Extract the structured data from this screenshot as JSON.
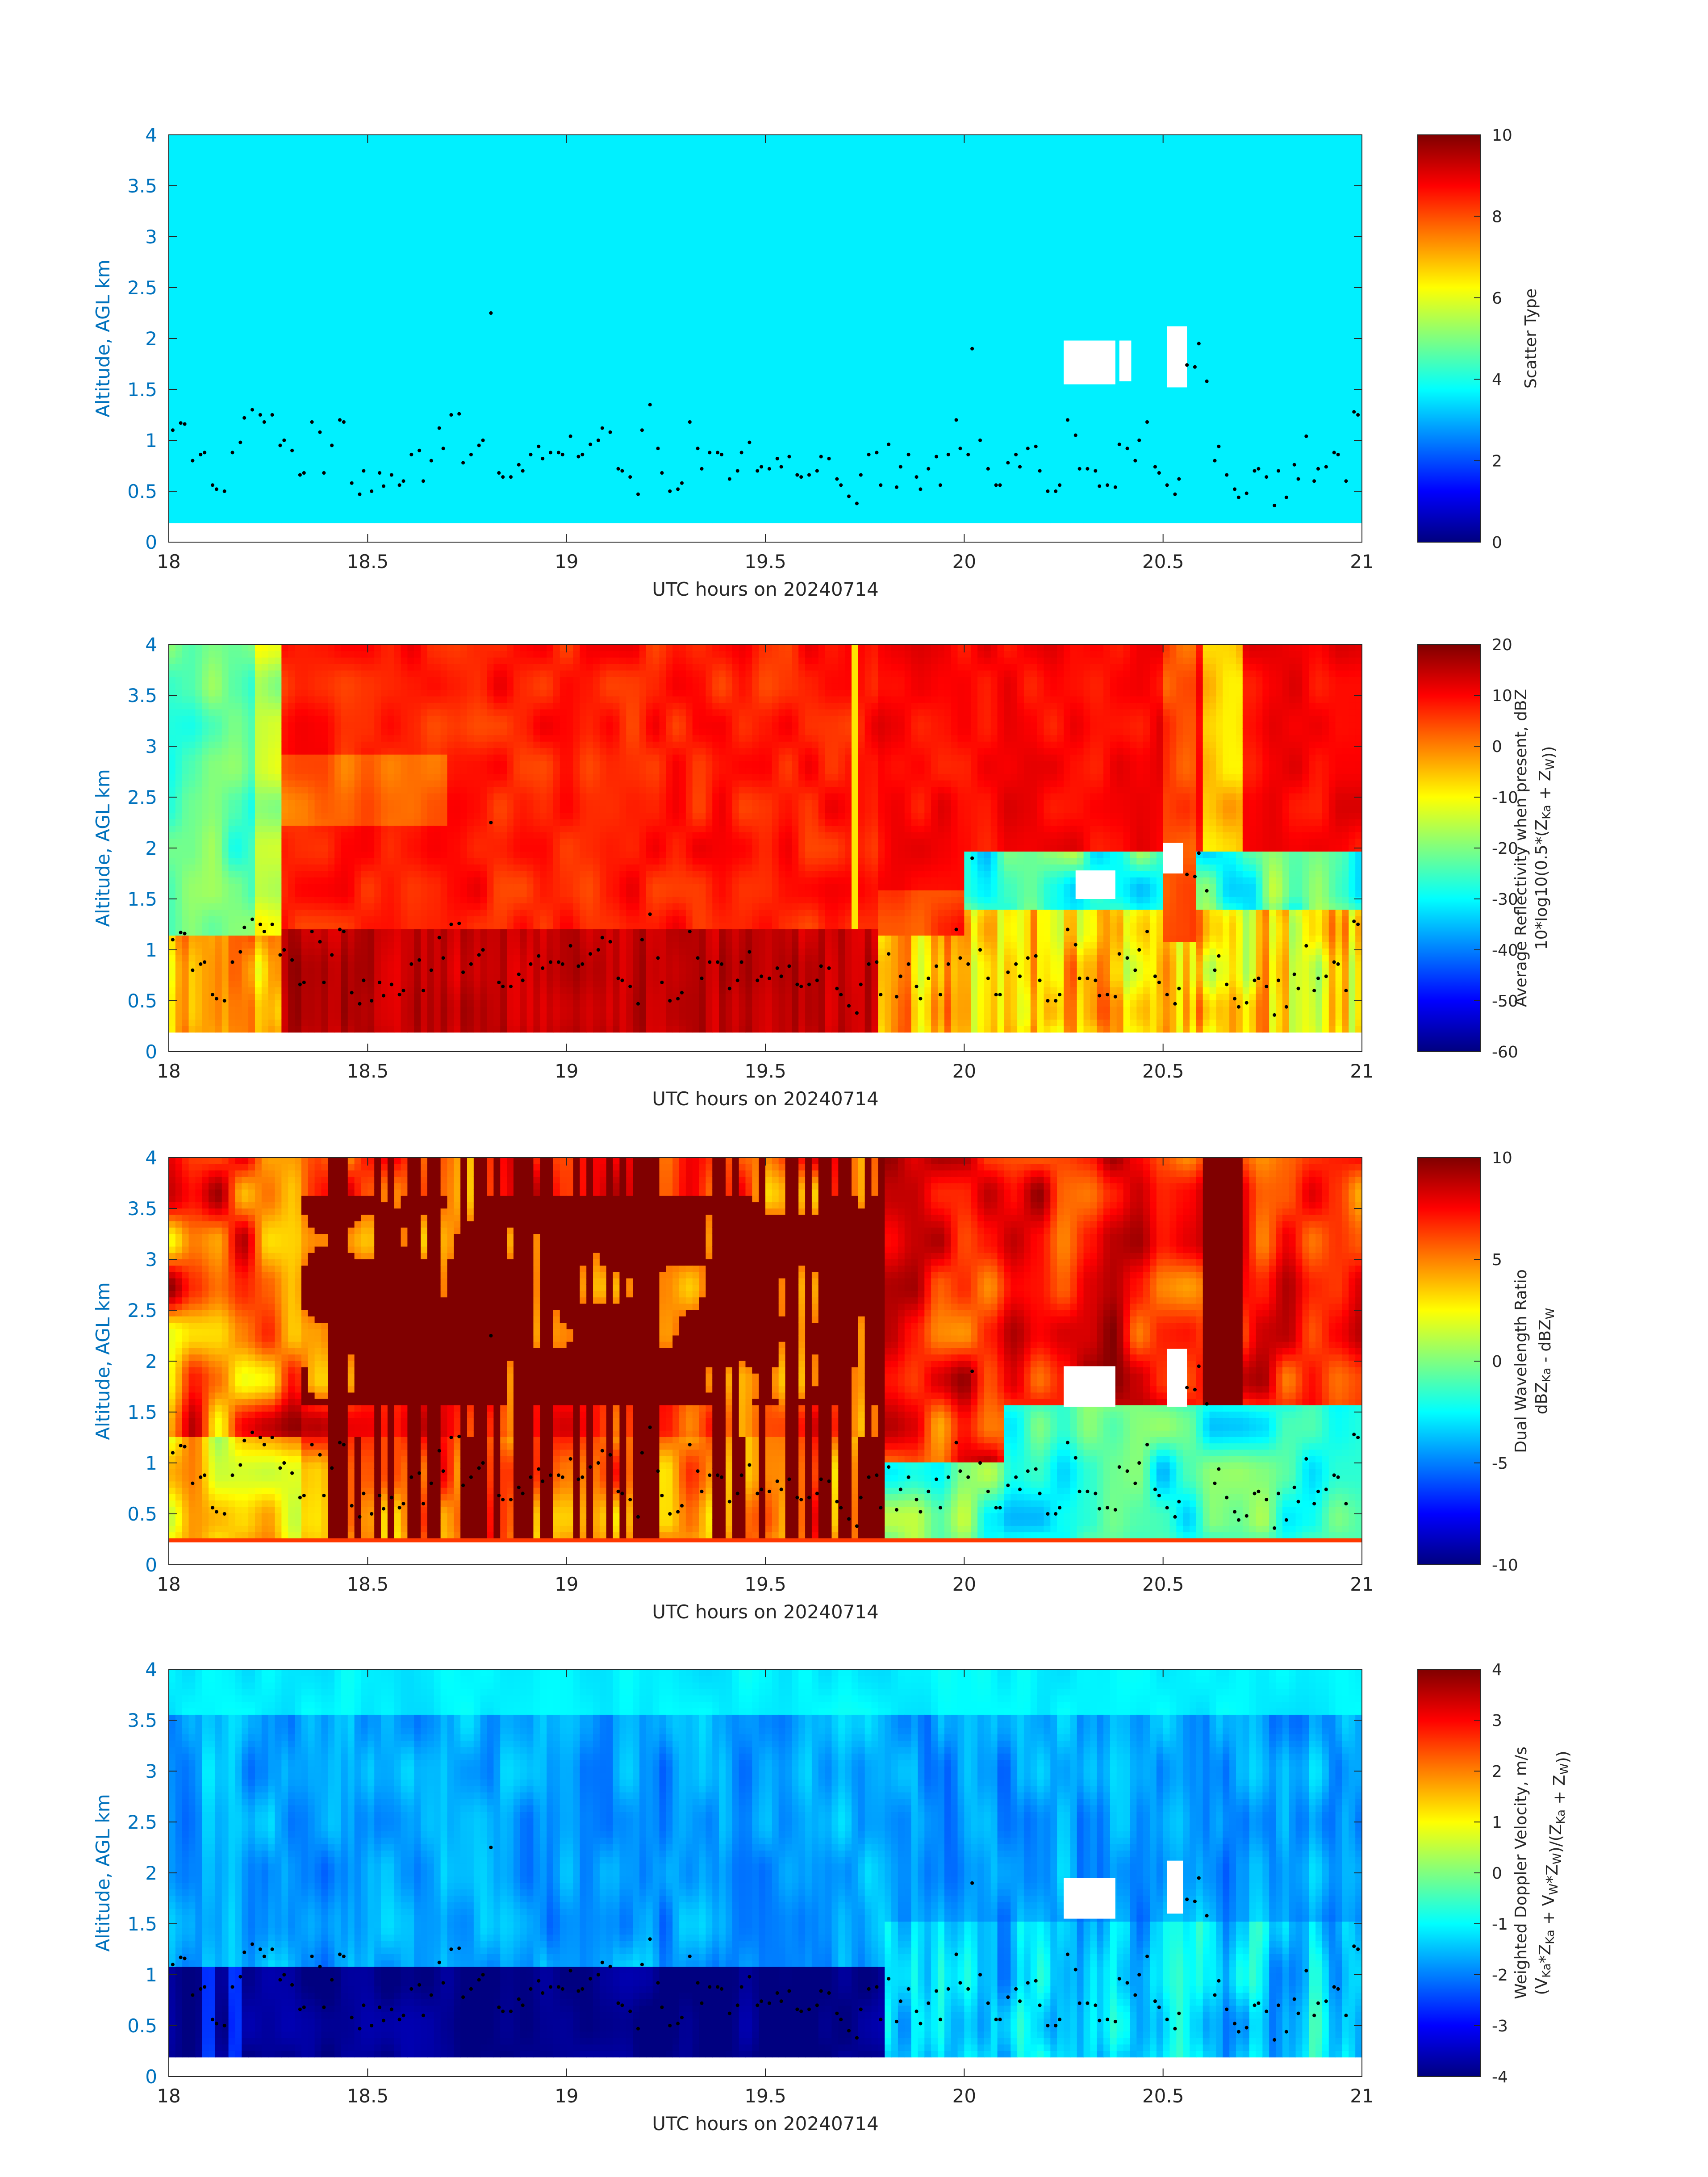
{
  "figure": {
    "background": "#ffffff",
    "ytick_color": "#0072BD",
    "text_color": "#262626",
    "colormap": "jet"
  },
  "chart_data": [
    {
      "type": "heatmap",
      "xlabel": "UTC hours on 20240714",
      "ylabel": "Altitude, AGL km",
      "xlim": [
        18,
        21
      ],
      "ylim": [
        0,
        4
      ],
      "xticks": [
        "18",
        "18.5",
        "19",
        "19.5",
        "20",
        "20.5",
        "21"
      ],
      "yticks": [
        "0",
        "0.5",
        "1",
        "1.5",
        "2",
        "2.5",
        "3",
        "3.5",
        "4"
      ],
      "colorbar": {
        "label_lines": [
          "Scatter Type"
        ],
        "clim": [
          0,
          10
        ],
        "ticks": [
          "0",
          "2",
          "4",
          "6",
          "8",
          "10"
        ]
      },
      "field": "scatter",
      "data_bottom_km": 0.19,
      "white_regions": [
        {
          "x": [
            20.25,
            20.38
          ],
          "y": [
            1.55,
            1.98
          ]
        },
        {
          "x": [
            20.39,
            20.42
          ],
          "y": [
            1.58,
            1.98
          ]
        },
        {
          "x": [
            20.51,
            20.56
          ],
          "y": [
            1.52,
            2.12
          ]
        }
      ]
    },
    {
      "type": "heatmap",
      "xlabel": "UTC hours on 20240714",
      "ylabel": "Altitude, AGL km",
      "xlim": [
        18,
        21
      ],
      "ylim": [
        0,
        4
      ],
      "xticks": [
        "18",
        "18.5",
        "19",
        "19.5",
        "20",
        "20.5",
        "21"
      ],
      "yticks": [
        "0",
        "0.5",
        "1",
        "1.5",
        "2",
        "2.5",
        "3",
        "3.5",
        "4"
      ],
      "colorbar": {
        "label_lines": [
          "Average Reflectivity when present, dBZ",
          "10*log10(0.5*(Z_Ka + Z_W))"
        ],
        "clim": [
          -60,
          20
        ],
        "ticks": [
          "-60",
          "-50",
          "-40",
          "-30",
          "-20",
          "-10",
          "0",
          "10",
          "20"
        ]
      },
      "field": "reflectivity",
      "data_bottom_km": 0.19,
      "white_regions": [
        {
          "x": [
            20.28,
            20.38
          ],
          "y": [
            1.5,
            1.78
          ]
        },
        {
          "x": [
            20.5,
            20.55
          ],
          "y": [
            1.75,
            2.05
          ]
        }
      ]
    },
    {
      "type": "heatmap",
      "xlabel": "UTC hours on 20240714",
      "ylabel": "Altitude, AGL km",
      "xlim": [
        18,
        21
      ],
      "ylim": [
        0,
        4
      ],
      "xticks": [
        "18",
        "18.5",
        "19",
        "19.5",
        "20",
        "20.5",
        "21"
      ],
      "yticks": [
        "0",
        "0.5",
        "1",
        "1.5",
        "2",
        "2.5",
        "3",
        "3.5",
        "4"
      ],
      "colorbar": {
        "label_lines": [
          "Dual Wavelength Ratio",
          "dBZ_Ka - dBZ_W"
        ],
        "clim": [
          -10,
          10
        ],
        "ticks": [
          "-10",
          "-5",
          "0",
          "5",
          "10"
        ]
      },
      "field": "dwr",
      "data_bottom_km": 0.26,
      "white_regions": [
        {
          "x": [
            20.25,
            20.38
          ],
          "y": [
            1.55,
            1.95
          ]
        },
        {
          "x": [
            20.51,
            20.56
          ],
          "y": [
            1.55,
            2.12
          ]
        }
      ]
    },
    {
      "type": "heatmap",
      "xlabel": "UTC hours on 20240714",
      "ylabel": "Altitude, AGL km",
      "xlim": [
        18,
        21
      ],
      "ylim": [
        0,
        4
      ],
      "xticks": [
        "18",
        "18.5",
        "19",
        "19.5",
        "20",
        "20.5",
        "21"
      ],
      "yticks": [
        "0",
        "0.5",
        "1",
        "1.5",
        "2",
        "2.5",
        "3",
        "3.5",
        "4"
      ],
      "colorbar": {
        "label_lines": [
          "Weighted Doppler Velocity, m/s",
          "(V_Ka*Z_Ka + V_W*Z_W)/(Z_Ka + Z_W))"
        ],
        "clim": [
          -4,
          4
        ],
        "ticks": [
          "-4",
          "-3",
          "-2",
          "-1",
          "0",
          "1",
          "2",
          "3",
          "4"
        ]
      },
      "field": "velocity",
      "data_bottom_km": 0.19,
      "white_regions": [
        {
          "x": [
            20.25,
            20.38
          ],
          "y": [
            1.55,
            1.95
          ]
        },
        {
          "x": [
            20.51,
            20.55
          ],
          "y": [
            1.6,
            2.12
          ]
        }
      ]
    }
  ],
  "cloud_base_points": [
    [
      18.01,
      1.1
    ],
    [
      18.03,
      1.17
    ],
    [
      18.04,
      1.16
    ],
    [
      18.06,
      0.8
    ],
    [
      18.08,
      0.86
    ],
    [
      18.09,
      0.88
    ],
    [
      18.11,
      0.56
    ],
    [
      18.12,
      0.52
    ],
    [
      18.14,
      0.5
    ],
    [
      18.16,
      0.88
    ],
    [
      18.18,
      0.98
    ],
    [
      18.19,
      1.22
    ],
    [
      18.21,
      1.3
    ],
    [
      18.23,
      1.25
    ],
    [
      18.24,
      1.18
    ],
    [
      18.26,
      1.25
    ],
    [
      18.28,
      0.95
    ],
    [
      18.29,
      1.0
    ],
    [
      18.31,
      0.9
    ],
    [
      18.33,
      0.66
    ],
    [
      18.34,
      0.68
    ],
    [
      18.36,
      1.18
    ],
    [
      18.38,
      1.08
    ],
    [
      18.39,
      0.68
    ],
    [
      18.41,
      0.95
    ],
    [
      18.43,
      1.2
    ],
    [
      18.44,
      1.18
    ],
    [
      18.46,
      0.58
    ],
    [
      18.48,
      0.47
    ],
    [
      18.49,
      0.7
    ],
    [
      18.51,
      0.5
    ],
    [
      18.53,
      0.68
    ],
    [
      18.54,
      0.55
    ],
    [
      18.56,
      0.66
    ],
    [
      18.58,
      0.56
    ],
    [
      18.59,
      0.6
    ],
    [
      18.61,
      0.86
    ],
    [
      18.63,
      0.9
    ],
    [
      18.64,
      0.6
    ],
    [
      18.66,
      0.8
    ],
    [
      18.68,
      1.12
    ],
    [
      18.69,
      0.92
    ],
    [
      18.71,
      1.25
    ],
    [
      18.73,
      1.26
    ],
    [
      18.74,
      0.78
    ],
    [
      18.76,
      0.86
    ],
    [
      18.78,
      0.95
    ],
    [
      18.79,
      1.0
    ],
    [
      18.81,
      2.25
    ],
    [
      18.83,
      0.68
    ],
    [
      18.84,
      0.64
    ],
    [
      18.86,
      0.64
    ],
    [
      18.88,
      0.76
    ],
    [
      18.89,
      0.7
    ],
    [
      18.91,
      0.86
    ],
    [
      18.93,
      0.94
    ],
    [
      18.94,
      0.82
    ],
    [
      18.96,
      0.88
    ],
    [
      18.98,
      0.88
    ],
    [
      18.99,
      0.86
    ],
    [
      19.01,
      1.04
    ],
    [
      19.03,
      0.84
    ],
    [
      19.04,
      0.86
    ],
    [
      19.06,
      0.96
    ],
    [
      19.08,
      1.0
    ],
    [
      19.09,
      1.12
    ],
    [
      19.11,
      1.08
    ],
    [
      19.13,
      0.72
    ],
    [
      19.14,
      0.7
    ],
    [
      19.16,
      0.64
    ],
    [
      19.18,
      0.47
    ],
    [
      19.19,
      1.1
    ],
    [
      19.21,
      1.35
    ],
    [
      19.23,
      0.92
    ],
    [
      19.24,
      0.68
    ],
    [
      19.26,
      0.5
    ],
    [
      19.28,
      0.52
    ],
    [
      19.29,
      0.58
    ],
    [
      19.31,
      1.18
    ],
    [
      19.33,
      0.92
    ],
    [
      19.34,
      0.72
    ],
    [
      19.36,
      0.88
    ],
    [
      19.38,
      0.88
    ],
    [
      19.39,
      0.86
    ],
    [
      19.41,
      0.62
    ],
    [
      19.43,
      0.7
    ],
    [
      19.44,
      0.88
    ],
    [
      19.46,
      0.98
    ],
    [
      19.48,
      0.7
    ],
    [
      19.49,
      0.74
    ],
    [
      19.51,
      0.72
    ],
    [
      19.53,
      0.82
    ],
    [
      19.54,
      0.74
    ],
    [
      19.56,
      0.84
    ],
    [
      19.58,
      0.66
    ],
    [
      19.59,
      0.64
    ],
    [
      19.61,
      0.66
    ],
    [
      19.63,
      0.7
    ],
    [
      19.64,
      0.84
    ],
    [
      19.66,
      0.82
    ],
    [
      19.68,
      0.62
    ],
    [
      19.69,
      0.56
    ],
    [
      19.71,
      0.45
    ],
    [
      19.73,
      0.38
    ],
    [
      19.74,
      0.66
    ],
    [
      19.76,
      0.86
    ],
    [
      19.78,
      0.88
    ],
    [
      19.79,
      0.56
    ],
    [
      19.81,
      0.96
    ],
    [
      19.83,
      0.54
    ],
    [
      19.84,
      0.74
    ],
    [
      19.86,
      0.86
    ],
    [
      19.88,
      0.64
    ],
    [
      19.89,
      0.52
    ],
    [
      19.91,
      0.72
    ],
    [
      19.93,
      0.84
    ],
    [
      19.94,
      0.56
    ],
    [
      19.96,
      0.86
    ],
    [
      19.98,
      1.2
    ],
    [
      19.99,
      0.92
    ],
    [
      20.01,
      0.86
    ],
    [
      20.02,
      1.9
    ],
    [
      20.04,
      1.0
    ],
    [
      20.06,
      0.72
    ],
    [
      20.08,
      0.56
    ],
    [
      20.09,
      0.56
    ],
    [
      20.11,
      0.78
    ],
    [
      20.13,
      0.86
    ],
    [
      20.14,
      0.74
    ],
    [
      20.16,
      0.92
    ],
    [
      20.18,
      0.94
    ],
    [
      20.19,
      0.7
    ],
    [
      20.21,
      0.5
    ],
    [
      20.23,
      0.5
    ],
    [
      20.24,
      0.56
    ],
    [
      20.26,
      1.2
    ],
    [
      20.28,
      1.05
    ],
    [
      20.29,
      0.72
    ],
    [
      20.31,
      0.72
    ],
    [
      20.33,
      0.7
    ],
    [
      20.34,
      0.55
    ],
    [
      20.36,
      0.56
    ],
    [
      20.38,
      0.54
    ],
    [
      20.39,
      0.96
    ],
    [
      20.41,
      0.92
    ],
    [
      20.43,
      0.8
    ],
    [
      20.44,
      1.0
    ],
    [
      20.46,
      1.18
    ],
    [
      20.48,
      0.74
    ],
    [
      20.49,
      0.68
    ],
    [
      20.51,
      0.56
    ],
    [
      20.53,
      0.47
    ],
    [
      20.54,
      0.62
    ],
    [
      20.56,
      1.74
    ],
    [
      20.58,
      1.72
    ],
    [
      20.59,
      1.95
    ],
    [
      20.61,
      1.58
    ],
    [
      20.63,
      0.8
    ],
    [
      20.64,
      0.94
    ],
    [
      20.66,
      0.66
    ],
    [
      20.68,
      0.52
    ],
    [
      20.69,
      0.44
    ],
    [
      20.71,
      0.48
    ],
    [
      20.73,
      0.7
    ],
    [
      20.74,
      0.72
    ],
    [
      20.76,
      0.64
    ],
    [
      20.78,
      0.36
    ],
    [
      20.79,
      0.7
    ],
    [
      20.81,
      0.44
    ],
    [
      20.83,
      0.76
    ],
    [
      20.84,
      0.62
    ],
    [
      20.86,
      1.04
    ],
    [
      20.88,
      0.6
    ],
    [
      20.89,
      0.72
    ],
    [
      20.91,
      0.74
    ],
    [
      20.93,
      0.88
    ],
    [
      20.94,
      0.86
    ],
    [
      20.96,
      0.6
    ],
    [
      20.98,
      1.28
    ],
    [
      20.99,
      1.25
    ]
  ]
}
